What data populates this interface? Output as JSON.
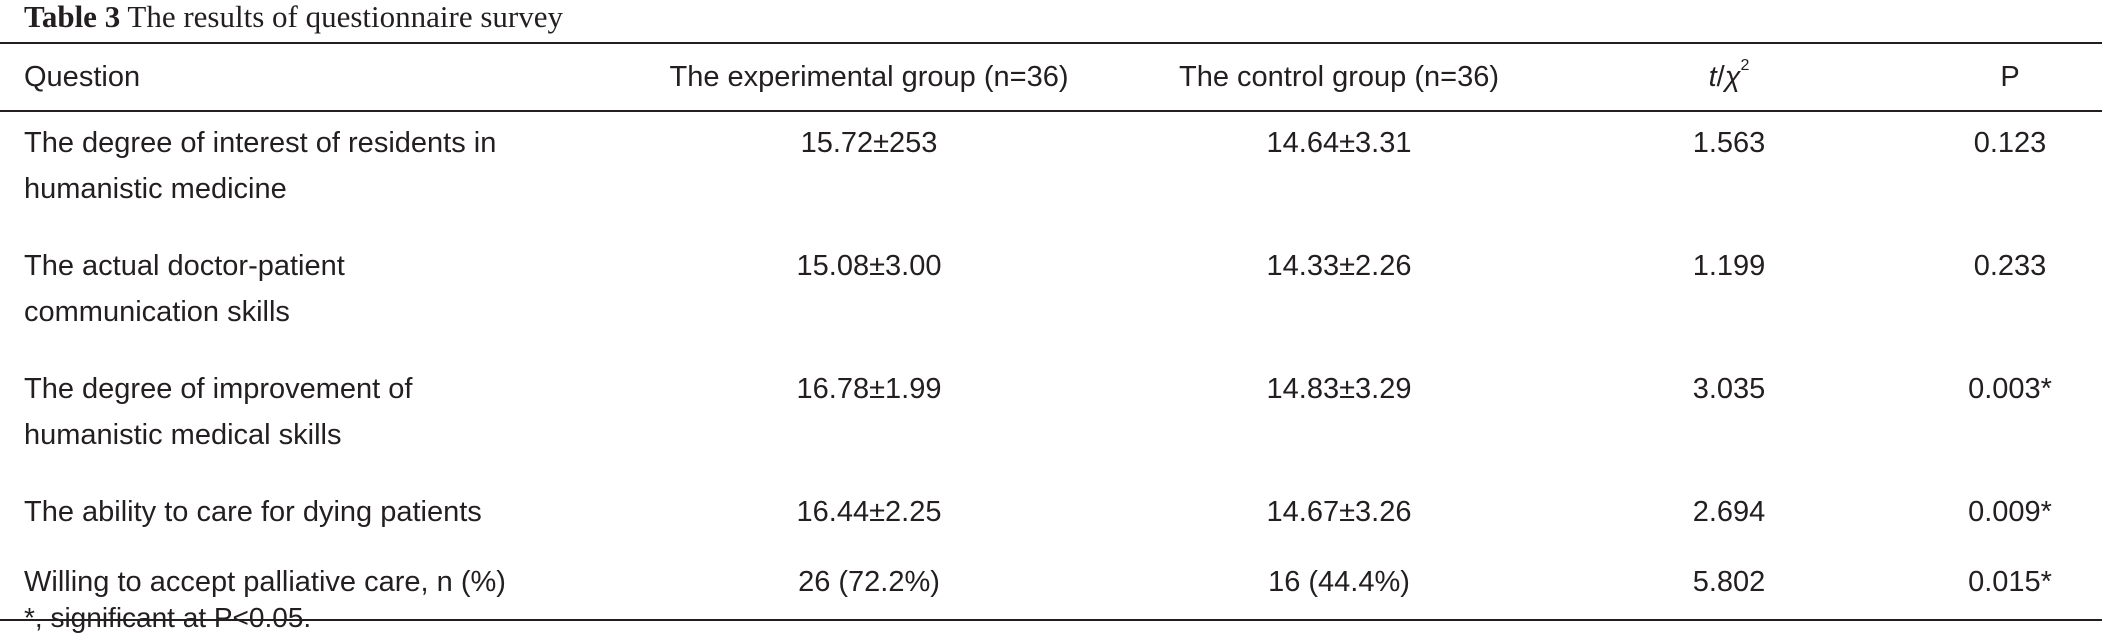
{
  "caption": {
    "label": "Table 3",
    "text": "The results of questionnaire survey"
  },
  "table": {
    "headers": {
      "question": "Question",
      "experimental": "The experimental group (n=36)",
      "control": "The control group (n=36)",
      "stat_t": "t",
      "stat_sep": "/",
      "stat_chi": "χ",
      "stat_sup": "2",
      "p": "P"
    },
    "rows": [
      {
        "question_line1": "The degree of interest of residents in",
        "question_line2": "humanistic medicine",
        "experimental": "15.72±253",
        "control": "14.64±3.31",
        "stat": "1.563",
        "p": "0.123"
      },
      {
        "question_line1": "The actual doctor-patient",
        "question_line2": "communication skills",
        "experimental": "15.08±3.00",
        "control": "14.33±2.26",
        "stat": "1.199",
        "p": "0.233"
      },
      {
        "question_line1": "The degree of improvement of",
        "question_line2": "humanistic medical skills",
        "experimental": "16.78±1.99",
        "control": "14.83±3.29",
        "stat": "3.035",
        "p": "0.003*"
      },
      {
        "question_line1": "The ability to care for dying patients",
        "question_line2": "",
        "experimental": "16.44±2.25",
        "control": "14.67±3.26",
        "stat": "2.694",
        "p": "0.009*"
      },
      {
        "question_line1": "Willing to accept palliative care, n (%)",
        "question_line2": "",
        "experimental": "26 (72.2%)",
        "control": "16 (44.4%)",
        "stat": "5.802",
        "p": "0.015*"
      }
    ]
  },
  "footnote": "*, significant at P<0.05."
}
